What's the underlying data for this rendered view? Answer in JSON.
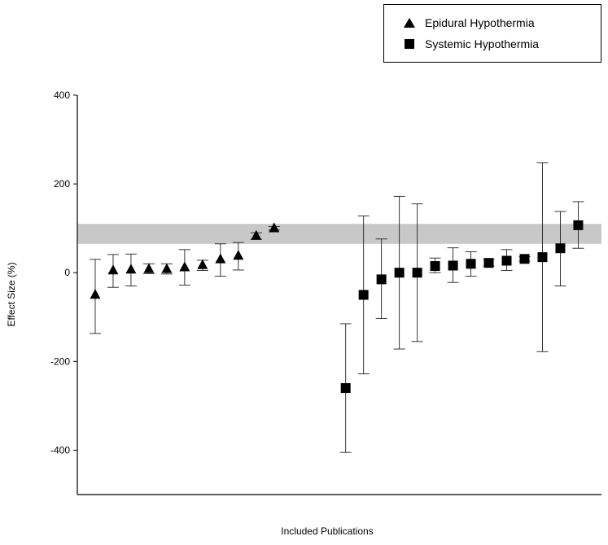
{
  "chart_data": {
    "type": "scatter",
    "title": "",
    "xlabel": "Included Publications",
    "ylabel": "Effect Size (%)",
    "ylim": [
      -500,
      400
    ],
    "yticks": [
      400,
      200,
      0,
      -200,
      -400
    ],
    "grid": false,
    "legend_position": "top-right",
    "reference_band": {
      "y_low": 65,
      "y_high": 110,
      "color": "#c8c8c8"
    },
    "series": [
      {
        "name": "Epidural Hypothermia",
        "marker": "triangle",
        "points": [
          {
            "x": 1,
            "y": -50,
            "low": -137,
            "high": 30
          },
          {
            "x": 2,
            "y": 5,
            "low": -33,
            "high": 41
          },
          {
            "x": 3,
            "y": 7,
            "low": -30,
            "high": 42
          },
          {
            "x": 4,
            "y": 8,
            "low": -2,
            "high": 20
          },
          {
            "x": 5,
            "y": 8,
            "low": -3,
            "high": 20
          },
          {
            "x": 6,
            "y": 12,
            "low": -28,
            "high": 52
          },
          {
            "x": 7,
            "y": 17,
            "low": 5,
            "high": 28
          },
          {
            "x": 8,
            "y": 30,
            "low": -8,
            "high": 65
          },
          {
            "x": 9,
            "y": 38,
            "low": 6,
            "high": 68
          },
          {
            "x": 10,
            "y": 83,
            "low": 75,
            "high": 90
          },
          {
            "x": 11,
            "y": 100,
            "low": 96,
            "high": 104
          }
        ]
      },
      {
        "name": "Systemic Hypothermia",
        "marker": "square",
        "points": [
          {
            "x": 15,
            "y": -260,
            "low": -405,
            "high": -115
          },
          {
            "x": 16,
            "y": -50,
            "low": -228,
            "high": 128
          },
          {
            "x": 17,
            "y": -15,
            "low": -103,
            "high": 76
          },
          {
            "x": 18,
            "y": 0,
            "low": -172,
            "high": 172
          },
          {
            "x": 19,
            "y": 0,
            "low": -155,
            "high": 155
          },
          {
            "x": 20,
            "y": 15,
            "low": 0,
            "high": 33
          },
          {
            "x": 21,
            "y": 16,
            "low": -22,
            "high": 56
          },
          {
            "x": 22,
            "y": 20,
            "low": -8,
            "high": 47
          },
          {
            "x": 23,
            "y": 22,
            "low": 15,
            "high": 30
          },
          {
            "x": 24,
            "y": 27,
            "low": 5,
            "high": 52
          },
          {
            "x": 25,
            "y": 31,
            "low": 26,
            "high": 36
          },
          {
            "x": 26,
            "y": 35,
            "low": -178,
            "high": 248
          },
          {
            "x": 27,
            "y": 55,
            "low": -30,
            "high": 138
          },
          {
            "x": 28,
            "y": 107,
            "low": 55,
            "high": 160
          }
        ]
      }
    ],
    "xlim": [
      0,
      29.3
    ]
  }
}
